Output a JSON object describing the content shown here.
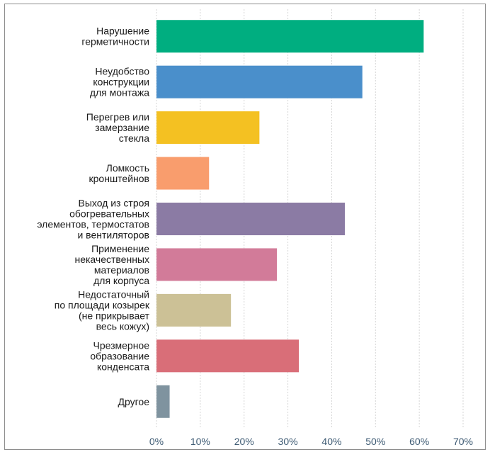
{
  "chart_data": {
    "type": "bar",
    "orientation": "horizontal",
    "title": "",
    "xlabel": "",
    "ylabel": "",
    "xlim": [
      0,
      70
    ],
    "x_ticks": [
      "0%",
      "10%",
      "20%",
      "30%",
      "40%",
      "50%",
      "60%",
      "70%"
    ],
    "grid": "vertical-dashed",
    "categories": [
      [
        "Нарушение",
        "герметичности"
      ],
      [
        "Неудобство",
        "конструкции",
        "для монтажа"
      ],
      [
        "Перегрев или",
        "замерзание",
        "стекла"
      ],
      [
        "Ломкость",
        "кронштейнов"
      ],
      [
        "Выход из строя",
        "обогревательных",
        "элементов, термостатов",
        "и вентиляторов"
      ],
      [
        "Применение",
        "некачественных",
        "материалов",
        "для корпуса"
      ],
      [
        "Недостаточный",
        "по площади козырек",
        "(не прикрывает",
        "весь кожух)"
      ],
      [
        "Чрезмерное",
        "образование",
        "конденсата"
      ],
      [
        "Другое"
      ]
    ],
    "values": [
      61,
      47,
      23.5,
      12,
      43,
      27.5,
      17,
      32.5,
      3
    ],
    "colors": [
      "#00AE80",
      "#4A8FCB",
      "#F4C122",
      "#F99D6D",
      "#8B7BA4",
      "#D27B99",
      "#CCC196",
      "#D96E78",
      "#7F939F"
    ]
  }
}
